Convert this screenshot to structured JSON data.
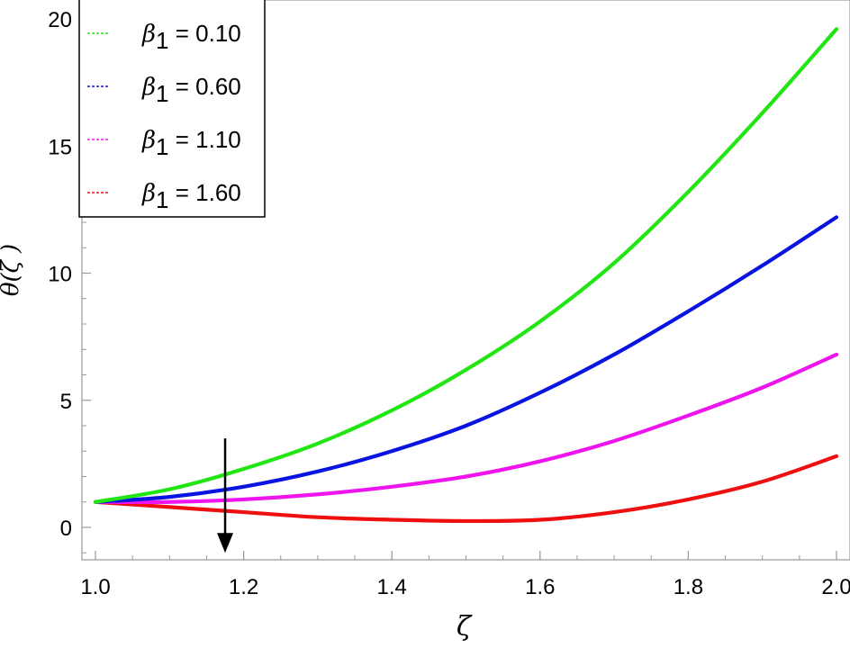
{
  "chart_data": {
    "type": "line",
    "xlabel": "ζ",
    "ylabel": "θ(ζ )",
    "xlim": [
      1.0,
      2.0
    ],
    "ylim": [
      -1.2,
      20.5
    ],
    "xticks": [
      "1.0",
      "1.2",
      "1.4",
      "1.6",
      "1.8",
      "2.0"
    ],
    "yticks": [
      "0",
      "5",
      "10",
      "15",
      "20"
    ],
    "legend_placement": "top-left",
    "legend_parameter": "β1",
    "x": [
      1.0,
      1.1,
      1.2,
      1.3,
      1.4,
      1.5,
      1.6,
      1.7,
      1.8,
      1.9,
      2.0
    ],
    "series": [
      {
        "name": "β1 = 0.10",
        "label": "0.10",
        "color": "#22e614",
        "values": [
          1.0,
          1.5,
          2.3,
          3.3,
          4.6,
          6.2,
          8.1,
          10.4,
          13.2,
          16.3,
          19.6
        ]
      },
      {
        "name": "β1 = 0.60",
        "label": "0.60",
        "color": "#0a14e0",
        "values": [
          1.0,
          1.2,
          1.6,
          2.2,
          3.0,
          4.0,
          5.3,
          6.8,
          8.5,
          10.3,
          12.2
        ]
      },
      {
        "name": "β1 = 1.10",
        "label": "1.10",
        "color": "#ee14ee",
        "values": [
          1.0,
          1.0,
          1.1,
          1.3,
          1.6,
          2.0,
          2.6,
          3.4,
          4.4,
          5.5,
          6.8
        ]
      },
      {
        "name": "β1 = 1.60",
        "label": "1.60",
        "color": "#ee1010",
        "values": [
          1.0,
          0.8,
          0.6,
          0.4,
          0.3,
          0.25,
          0.3,
          0.6,
          1.1,
          1.8,
          2.8
        ]
      }
    ],
    "annotation": {
      "type": "arrow",
      "x": 1.175,
      "y_from": 3.5,
      "y_to": -1.0,
      "direction": "down"
    },
    "grid": false
  }
}
